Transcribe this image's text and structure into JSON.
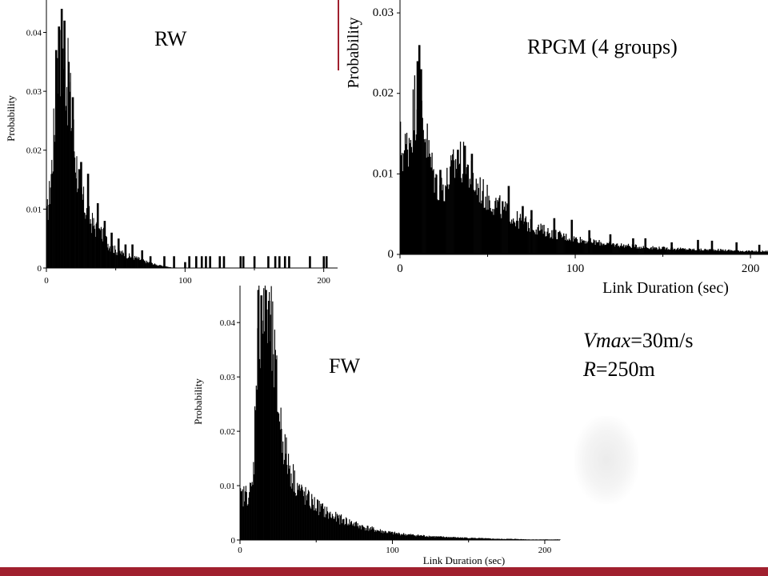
{
  "theme": {
    "accent": "#a0202e",
    "bar_color": "#000000"
  },
  "annotation": {
    "vmax_var": "Vmax",
    "vmax_val": "=30m/s",
    "r_var": "R",
    "r_val": "=250m"
  },
  "chart_data": [
    {
      "id": "rw",
      "type": "bar",
      "title": "RW",
      "xlabel": "",
      "ylabel": "Probability",
      "xlim": [
        0,
        210
      ],
      "ylim": [
        0,
        0.045
      ],
      "xticks": [
        "0",
        "100",
        "200"
      ],
      "xtick_values": [
        0,
        100,
        200
      ],
      "yticks": [
        "0",
        "0.01",
        "0.02",
        "0.03",
        "0.04"
      ],
      "ytick_values": [
        0,
        0.01,
        0.02,
        0.03,
        0.04
      ],
      "profile": [
        [
          0,
          0.009
        ],
        [
          1,
          0.011
        ],
        [
          2,
          0.013
        ],
        [
          3,
          0.016
        ],
        [
          4,
          0.019
        ],
        [
          5,
          0.023
        ],
        [
          6,
          0.027
        ],
        [
          7,
          0.031
        ],
        [
          8,
          0.034
        ],
        [
          9,
          0.034
        ],
        [
          10,
          0.036
        ],
        [
          11,
          0.036
        ],
        [
          12,
          0.038
        ],
        [
          13,
          0.036
        ],
        [
          14,
          0.034
        ],
        [
          16,
          0.031
        ],
        [
          18,
          0.026
        ],
        [
          20,
          0.021
        ],
        [
          22,
          0.017
        ],
        [
          24,
          0.014
        ],
        [
          27,
          0.011
        ],
        [
          30,
          0.009
        ],
        [
          35,
          0.007
        ],
        [
          40,
          0.006
        ],
        [
          45,
          0.004
        ],
        [
          50,
          0.003
        ],
        [
          55,
          0.0025
        ],
        [
          60,
          0.002
        ],
        [
          65,
          0.0017
        ],
        [
          70,
          0.0012
        ],
        [
          80,
          0.0005
        ],
        [
          90,
          0.0001
        ],
        [
          100,
          0
        ]
      ],
      "peaks": [
        [
          9,
          0.041
        ],
        [
          11,
          0.044
        ],
        [
          13,
          0.042
        ],
        [
          7,
          0.037
        ],
        [
          16,
          0.035
        ],
        [
          19,
          0.029
        ],
        [
          25,
          0.018
        ],
        [
          30,
          0.016
        ],
        [
          37,
          0.011
        ],
        [
          42,
          0.008
        ],
        [
          47,
          0.006
        ],
        [
          52,
          0.005
        ],
        [
          57,
          0.004
        ],
        [
          62,
          0.004
        ],
        [
          69,
          0.003
        ],
        [
          75,
          0.002
        ]
      ],
      "spikes": [
        [
          85,
          0.002
        ],
        [
          92,
          0.002
        ],
        [
          100,
          0.001
        ],
        [
          103,
          0.002
        ],
        [
          108,
          0.002
        ],
        [
          112,
          0.002
        ],
        [
          115,
          0.002
        ],
        [
          118,
          0.002
        ],
        [
          125,
          0.002
        ],
        [
          128,
          0.002
        ],
        [
          140,
          0.002
        ],
        [
          142,
          0.002
        ],
        [
          150,
          0.002
        ],
        [
          160,
          0.002
        ],
        [
          165,
          0.002
        ],
        [
          168,
          0.002
        ],
        [
          172,
          0.002
        ],
        [
          175,
          0.002
        ],
        [
          190,
          0.002
        ],
        [
          200,
          0.002
        ],
        [
          202,
          0.002
        ]
      ]
    },
    {
      "id": "rpgm",
      "type": "bar",
      "title": "RPGM (4 groups)",
      "xlabel": "Link Duration (sec)",
      "ylabel": "Probability",
      "xlim": [
        0,
        210
      ],
      "ylim": [
        0,
        0.031
      ],
      "xticks": [
        "0",
        "100",
        "200"
      ],
      "xtick_values": [
        0,
        100,
        200
      ],
      "yticks": [
        "0",
        "0.01",
        "0.02",
        "0.03"
      ],
      "ytick_values": [
        0,
        0.01,
        0.02,
        0.03
      ],
      "profile": [
        [
          0,
          0.014
        ],
        [
          2,
          0.013
        ],
        [
          4,
          0.014
        ],
        [
          6,
          0.016
        ],
        [
          8,
          0.019
        ],
        [
          10,
          0.021
        ],
        [
          12,
          0.019
        ],
        [
          14,
          0.016
        ],
        [
          16,
          0.013
        ],
        [
          18,
          0.011
        ],
        [
          20,
          0.0095
        ],
        [
          22,
          0.0085
        ],
        [
          24,
          0.0085
        ],
        [
          26,
          0.009
        ],
        [
          28,
          0.01
        ],
        [
          30,
          0.011
        ],
        [
          32,
          0.0115
        ],
        [
          34,
          0.012
        ],
        [
          36,
          0.0115
        ],
        [
          38,
          0.011
        ],
        [
          40,
          0.01
        ],
        [
          42,
          0.009
        ],
        [
          45,
          0.0085
        ],
        [
          48,
          0.0075
        ],
        [
          52,
          0.0068
        ],
        [
          56,
          0.0062
        ],
        [
          60,
          0.0055
        ],
        [
          65,
          0.0045
        ],
        [
          70,
          0.0042
        ],
        [
          75,
          0.0035
        ],
        [
          80,
          0.0032
        ],
        [
          85,
          0.0028
        ],
        [
          90,
          0.0025
        ],
        [
          95,
          0.0022
        ],
        [
          100,
          0.002
        ],
        [
          110,
          0.0016
        ],
        [
          120,
          0.0013
        ],
        [
          130,
          0.0011
        ],
        [
          140,
          0.0009
        ],
        [
          150,
          0.0008
        ],
        [
          160,
          0.0007
        ],
        [
          170,
          0.0006
        ],
        [
          180,
          0.0006
        ],
        [
          190,
          0.0005
        ],
        [
          200,
          0.0004
        ],
        [
          210,
          0.0004
        ]
      ],
      "peaks": [
        [
          10,
          0.024
        ],
        [
          11,
          0.026
        ],
        [
          12,
          0.023
        ],
        [
          33,
          0.013
        ],
        [
          37,
          0.0135
        ],
        [
          41,
          0.0125
        ],
        [
          23,
          0.0105
        ],
        [
          62,
          0.0085
        ],
        [
          70,
          0.006
        ],
        [
          75,
          0.0055
        ],
        [
          88,
          0.0045
        ],
        [
          98,
          0.0043
        ],
        [
          108,
          0.003
        ],
        [
          120,
          0.0025
        ],
        [
          133,
          0.002
        ],
        [
          140,
          0.002
        ],
        [
          155,
          0.0015
        ],
        [
          170,
          0.0018
        ],
        [
          178,
          0.0017
        ],
        [
          192,
          0.0015
        ],
        [
          205,
          0.0012
        ]
      ]
    },
    {
      "id": "fw",
      "type": "bar",
      "title": "FW",
      "xlabel": "Link Duration (sec)",
      "ylabel": "Probability",
      "xlim": [
        0,
        210
      ],
      "ylim": [
        0,
        0.045
      ],
      "xticks": [
        "0",
        "100",
        "200"
      ],
      "xtick_values": [
        0,
        100,
        200
      ],
      "yticks": [
        "0",
        "0.01",
        "0.02",
        "0.03",
        "0.04"
      ],
      "ytick_values": [
        0,
        0.01,
        0.02,
        0.03,
        0.04
      ],
      "profile": [
        [
          0,
          0.008
        ],
        [
          3,
          0.0085
        ],
        [
          6,
          0.009
        ],
        [
          8,
          0.01
        ],
        [
          9,
          0.016
        ],
        [
          10,
          0.03
        ],
        [
          11,
          0.038
        ],
        [
          12,
          0.041
        ],
        [
          14,
          0.043
        ],
        [
          16,
          0.042
        ],
        [
          18,
          0.041
        ],
        [
          20,
          0.039
        ],
        [
          22,
          0.034
        ],
        [
          24,
          0.028
        ],
        [
          26,
          0.023
        ],
        [
          28,
          0.019
        ],
        [
          30,
          0.016
        ],
        [
          33,
          0.013
        ],
        [
          36,
          0.011
        ],
        [
          40,
          0.009
        ],
        [
          45,
          0.0075
        ],
        [
          50,
          0.0065
        ],
        [
          55,
          0.0055
        ],
        [
          60,
          0.0045
        ],
        [
          70,
          0.0035
        ],
        [
          80,
          0.0025
        ],
        [
          90,
          0.0018
        ],
        [
          100,
          0.0013
        ],
        [
          110,
          0.001
        ],
        [
          120,
          0.0008
        ],
        [
          130,
          0.0006
        ],
        [
          140,
          0.0005
        ],
        [
          150,
          0.0004
        ],
        [
          160,
          0.0003
        ],
        [
          170,
          0.0002
        ],
        [
          180,
          0.0002
        ],
        [
          190,
          0.0001
        ],
        [
          200,
          0.0001
        ],
        [
          210,
          0.0001
        ]
      ],
      "peaks": [
        [
          12,
          0.046
        ],
        [
          14,
          0.045
        ],
        [
          17,
          0.046
        ],
        [
          19,
          0.044
        ]
      ]
    }
  ]
}
